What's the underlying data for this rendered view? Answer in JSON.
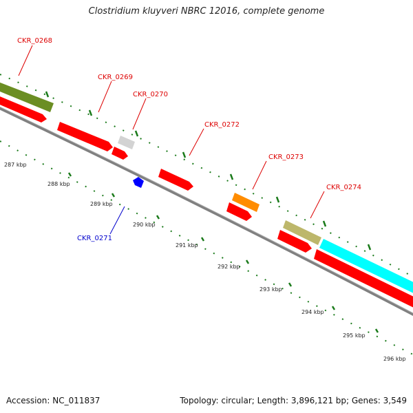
{
  "header": {
    "title": "Clostridium kluyveri NBRC 12016, complete genome"
  },
  "footer": {
    "accession": "Accession: NC_011837",
    "stats": "Topology: circular; Length: 3,896,121 bp; Genes: 3,549"
  },
  "colors": {
    "forward_cds": "#ff0000",
    "olive": "#6b8e23",
    "khaki": "#bdb76b",
    "grey": "#d3d3d3",
    "orange": "#ff8c00",
    "cyan": "#00ffff",
    "blue": "#0000ff",
    "label_red": "#dd0000",
    "label_blue": "#0000cc",
    "tick_green": "#1a7a1a",
    "backbone": "#808080"
  },
  "genes": [
    {
      "id": "CKR_0268",
      "label": "CKR_0268",
      "color": "#dd0000"
    },
    {
      "id": "CKR_0269",
      "label": "CKR_0269",
      "color": "#dd0000"
    },
    {
      "id": "CKR_0270",
      "label": "CKR_0270",
      "color": "#dd0000"
    },
    {
      "id": "CKR_0271",
      "label": "CKR_0271",
      "color": "#0000cc"
    },
    {
      "id": "CKR_0272",
      "label": "CKR_0272",
      "color": "#dd0000"
    },
    {
      "id": "CKR_0273",
      "label": "CKR_0273",
      "color": "#dd0000"
    },
    {
      "id": "CKR_0274",
      "label": "CKR_0274",
      "color": "#dd0000"
    }
  ],
  "scale": [
    "287 kbp",
    "288 kbp",
    "289 kbp",
    "290 kbp",
    "291 kbp",
    "292 kbp",
    "293 kbp",
    "294 kbp",
    "295 kbp",
    "296 kbp"
  ]
}
